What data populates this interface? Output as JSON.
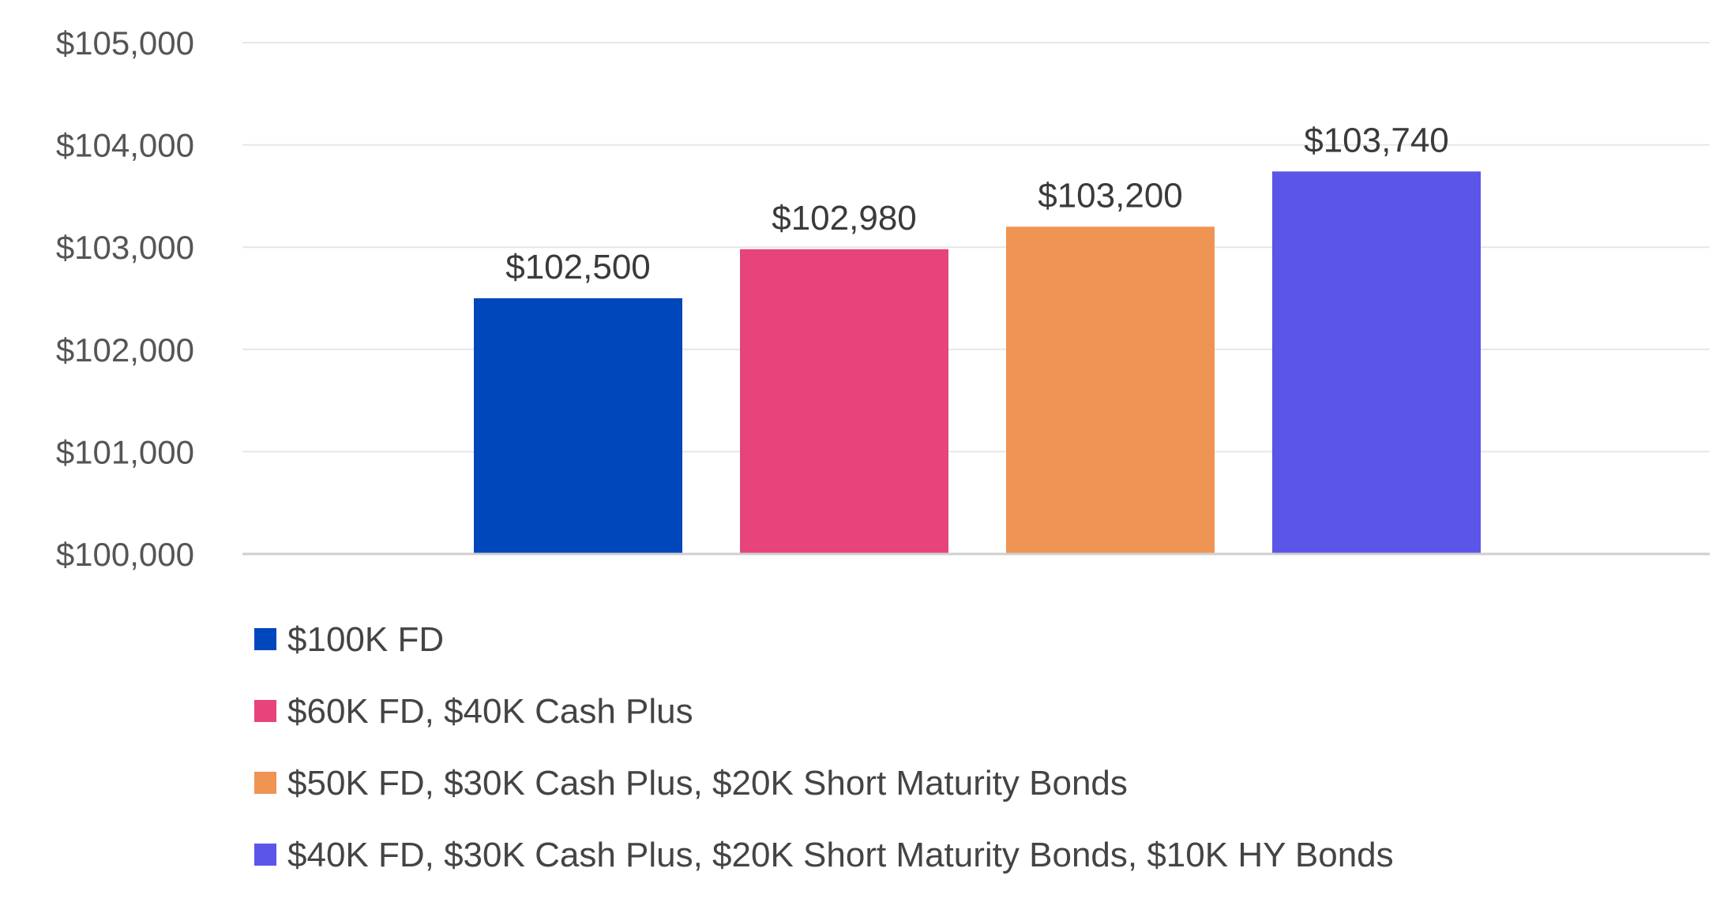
{
  "chart_data": {
    "type": "bar",
    "title": "",
    "xlabel": "",
    "ylabel": "",
    "ylim": [
      100000,
      105000
    ],
    "yticks": [
      100000,
      101000,
      102000,
      103000,
      104000,
      105000
    ],
    "ytick_labels": [
      "$100,000",
      "$101,000",
      "$102,000",
      "$103,000",
      "$104,000",
      "$105,000"
    ],
    "grid": true,
    "legend_position": "bottom-left",
    "series": [
      {
        "name": "$100K FD",
        "value": 102500,
        "label": "$102,500",
        "color": "#0047bb"
      },
      {
        "name": "$60K FD, $40K Cash Plus",
        "value": 102980,
        "label": "$102,980",
        "color": "#e6447a"
      },
      {
        "name": "$50K FD, $30K Cash Plus, $20K Short Maturity Bonds",
        "value": 103200,
        "label": "$103,200",
        "color": "#f09453"
      },
      {
        "name": "$40K FD, $30K Cash Plus, $20K Short Maturity Bonds, $10K HY Bonds",
        "value": 103740,
        "label": "$103,740",
        "color": "#5b55e8"
      }
    ]
  }
}
